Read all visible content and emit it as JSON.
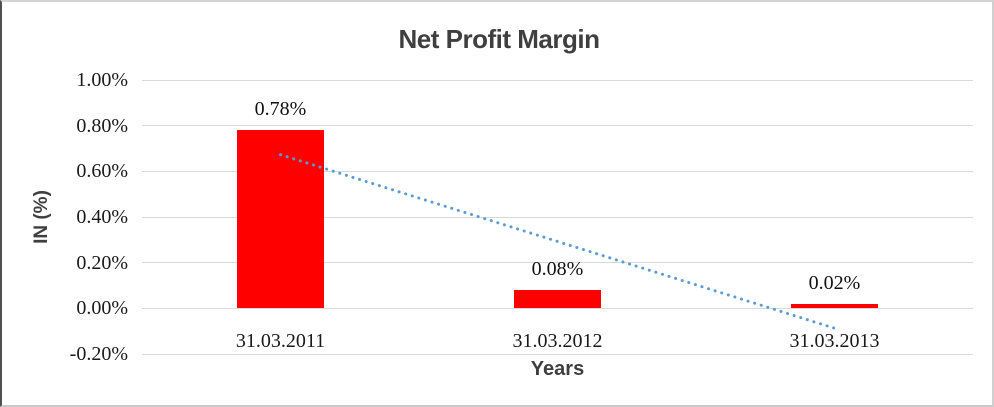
{
  "chart_data": {
    "type": "bar",
    "title": "Net Profit Margin",
    "xlabel": "Years",
    "ylabel": "IN (%)",
    "categories": [
      "31.03.2011",
      "31.03.2012",
      "31.03.2013"
    ],
    "values": [
      0.78,
      0.08,
      0.02
    ],
    "data_labels": [
      "0.78%",
      "0.08%",
      "0.02%"
    ],
    "unit": "%",
    "ylim": [
      -0.2,
      1.0
    ],
    "ytick_step": 0.2,
    "ytick_labels": [
      "1.00%",
      "0.80%",
      "0.60%",
      "0.40%",
      "0.20%",
      "0.00%",
      "-0.20%"
    ],
    "grid": true,
    "legend": false,
    "trendline": {
      "type": "linear",
      "style": "dotted",
      "start_value": 0.673,
      "end_value": -0.087
    },
    "colors": {
      "bar": "#ff0000",
      "gridline": "#d9d9d9",
      "trendline": "#5b9bd5",
      "title_text": "#3f3f3f",
      "tick_text": "#1a1a1a"
    }
  }
}
